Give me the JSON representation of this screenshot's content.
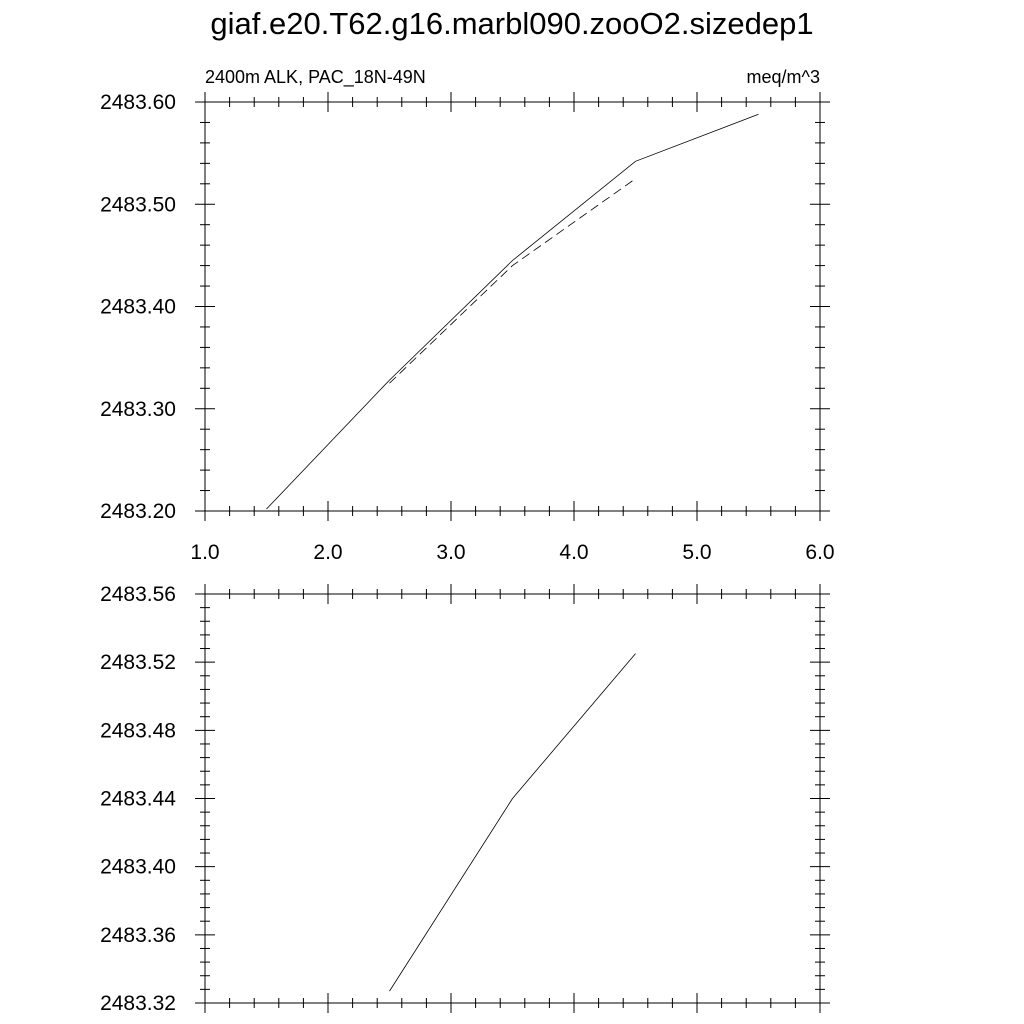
{
  "title": "giaf.e20.T62.g16.marbl090.zooO2.sizedep1",
  "chart_data": [
    {
      "type": "line",
      "left_label": "2400m ALK, PAC_18N-49N",
      "right_label": "meq/m^3",
      "xlim": [
        1.0,
        6.0
      ],
      "ylim": [
        2483.2,
        2483.6
      ],
      "x_ticks": [
        1.0,
        2.0,
        3.0,
        4.0,
        5.0,
        6.0
      ],
      "x_tick_labels": [
        "1.0",
        "2.0",
        "3.0",
        "4.0",
        "5.0",
        "6.0"
      ],
      "y_ticks": [
        2483.2,
        2483.3,
        2483.4,
        2483.5,
        2483.6
      ],
      "y_tick_labels": [
        "2483.20",
        "2483.30",
        "2483.40",
        "2483.50",
        "2483.60"
      ],
      "grid": false,
      "series": [
        {
          "style": "solid",
          "x": [
            1.5,
            2.5,
            3.5,
            4.5,
            5.5
          ],
          "y": [
            2483.202,
            2483.328,
            2483.445,
            2483.542,
            2483.588
          ]
        },
        {
          "style": "dashed",
          "x": [
            2.5,
            3.5,
            4.5
          ],
          "y": [
            2483.325,
            2483.44,
            2483.525
          ]
        }
      ]
    },
    {
      "type": "line",
      "xlim": [
        1.0,
        6.0
      ],
      "ylim": [
        2483.32,
        2483.56
      ],
      "x_ticks": [
        1.0,
        2.0,
        3.0,
        4.0,
        5.0,
        6.0
      ],
      "x_tick_labels": [],
      "y_ticks": [
        2483.32,
        2483.36,
        2483.4,
        2483.44,
        2483.48,
        2483.52,
        2483.56
      ],
      "y_tick_labels": [
        "2483.32",
        "2483.36",
        "2483.40",
        "2483.44",
        "2483.48",
        "2483.52",
        "2483.56"
      ],
      "grid": false,
      "series": [
        {
          "style": "solid",
          "x": [
            2.5,
            3.5,
            4.5
          ],
          "y": [
            2483.327,
            2483.44,
            2483.525
          ]
        }
      ]
    }
  ]
}
